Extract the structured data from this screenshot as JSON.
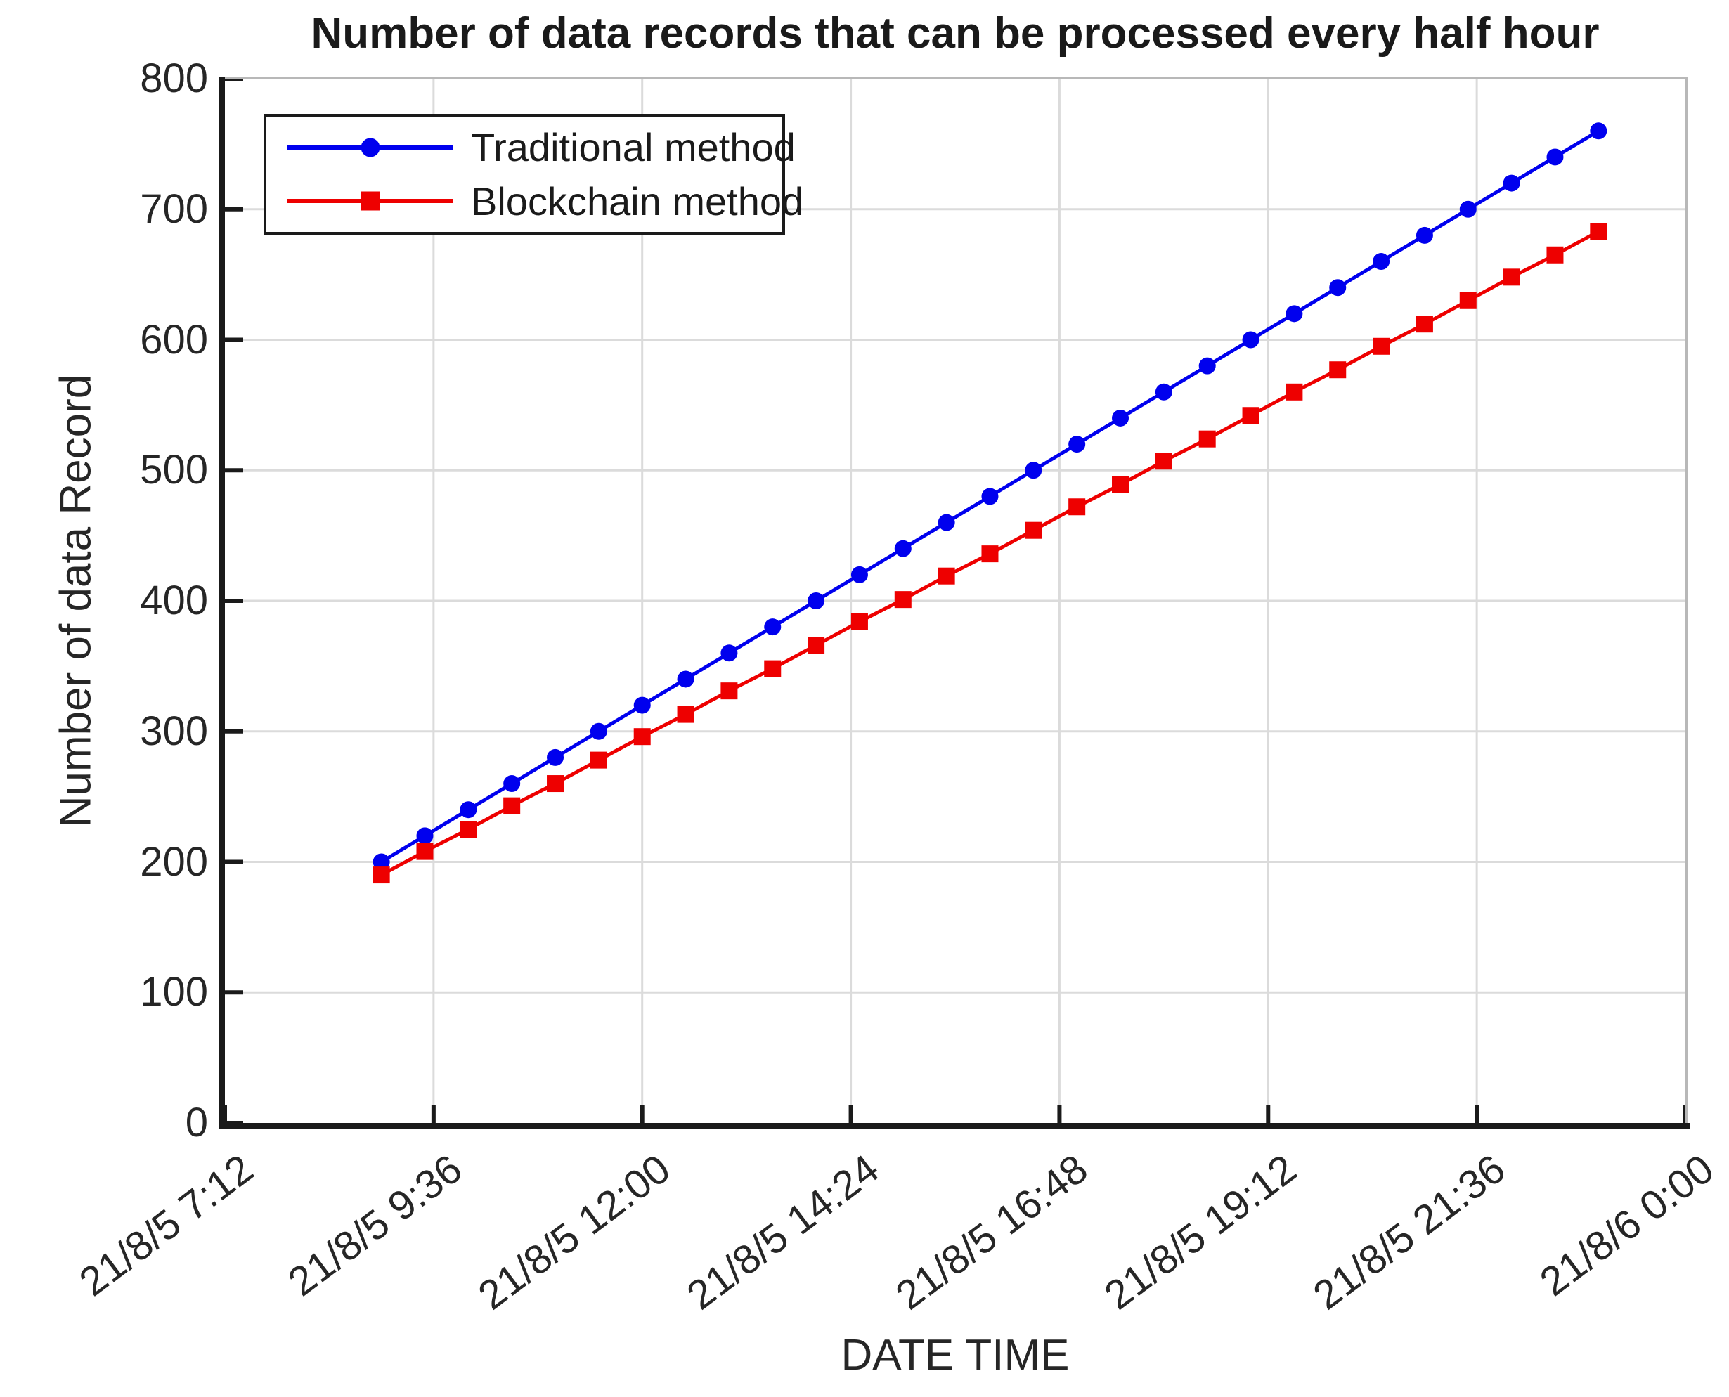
{
  "chart_data": {
    "type": "line",
    "title": "Number of data records that can be processed every half hour",
    "xlabel": "DATE TIME",
    "ylabel": "Number of data Record",
    "grid": true,
    "legend_position": "top-left",
    "ylim": [
      0,
      800
    ],
    "y_ticks": [
      0,
      100,
      200,
      300,
      400,
      500,
      600,
      700,
      800
    ],
    "x_axis_range_hours": [
      7.2,
      24.0
    ],
    "x_tick_hours": [
      7.2,
      9.6,
      12.0,
      14.4,
      16.8,
      19.2,
      21.6,
      24.0
    ],
    "x_tick_labels": [
      "21/8/5 7:12",
      "21/8/5 9:36",
      "21/8/5 12:00",
      "21/8/5 14:24",
      "21/8/5 16:48",
      "21/8/5 19:12",
      "21/8/5 21:36",
      "21/8/6 0:00"
    ],
    "x_labels": [
      "21/8/5 9:00",
      "21/8/5 9:30",
      "21/8/5 10:00",
      "21/8/5 10:30",
      "21/8/5 11:00",
      "21/8/5 11:30",
      "21/8/5 12:00",
      "21/8/5 12:30",
      "21/8/5 13:00",
      "21/8/5 13:30",
      "21/8/5 14:00",
      "21/8/5 14:30",
      "21/8/5 15:00",
      "21/8/5 15:30",
      "21/8/5 16:00",
      "21/8/5 16:30",
      "21/8/5 17:00",
      "21/8/5 17:30",
      "21/8/5 18:00",
      "21/8/5 18:30",
      "21/8/5 19:00",
      "21/8/5 19:30",
      "21/8/5 20:00",
      "21/8/5 20:30",
      "21/8/5 21:00",
      "21/8/5 21:30",
      "21/8/5 22:00",
      "21/8/5 22:30",
      "21/8/5 23:00"
    ],
    "x_hours": [
      9.0,
      9.5,
      10.0,
      10.5,
      11.0,
      11.5,
      12.0,
      12.5,
      13.0,
      13.5,
      14.0,
      14.5,
      15.0,
      15.5,
      16.0,
      16.5,
      17.0,
      17.5,
      18.0,
      18.5,
      19.0,
      19.5,
      20.0,
      20.5,
      21.0,
      21.5,
      22.0,
      22.5,
      23.0
    ],
    "series": [
      {
        "name": "Traditional method",
        "color": "#0000EE",
        "marker": "circle",
        "values": [
          200,
          220,
          240,
          260,
          280,
          300,
          320,
          340,
          360,
          380,
          400,
          420,
          440,
          460,
          480,
          500,
          520,
          540,
          560,
          580,
          600,
          620,
          640,
          660,
          680,
          700,
          720,
          740,
          760
        ]
      },
      {
        "name": "Blockchain method",
        "color": "#EE0000",
        "marker": "square",
        "values": [
          190,
          208,
          225,
          243,
          260,
          278,
          296,
          313,
          331,
          348,
          366,
          384,
          401,
          419,
          436,
          454,
          472,
          489,
          507,
          524,
          542,
          560,
          577,
          595,
          612,
          630,
          648,
          665,
          683
        ]
      }
    ]
  },
  "colors": {
    "axis": "#1A1A1A",
    "plot_border_light": "#B8B8B8",
    "grid": "#DBDBDB",
    "tick_label": "#262626",
    "background": "#FFFFFF"
  }
}
